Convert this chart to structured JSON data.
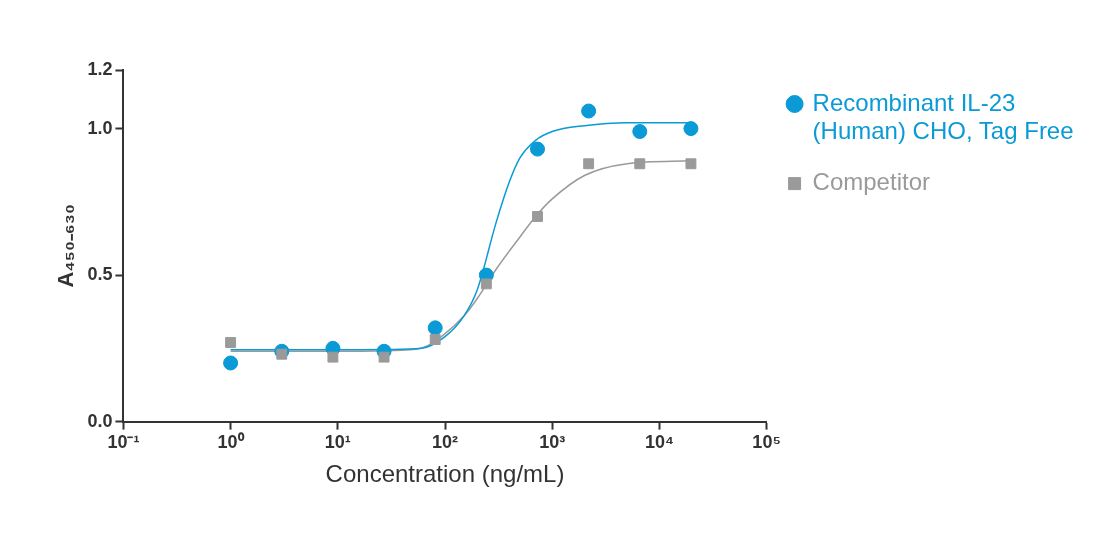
{
  "chart_data": {
    "type": "scatter",
    "xlabel": "Concentration (ng/mL)",
    "ylabel": "A₄₅₀₋₆₃₀",
    "log": "x",
    "xlim": [
      0.1,
      100000
    ],
    "xticks": [
      {
        "value": 0.1,
        "label": "10⁻¹"
      },
      {
        "value": 1,
        "label": "10⁰"
      },
      {
        "value": 10,
        "label": "10¹"
      },
      {
        "value": 100,
        "label": "10²"
      },
      {
        "value": 1000,
        "label": "10³"
      },
      {
        "value": 10000,
        "label": "10⁴"
      },
      {
        "value": 100000,
        "label": "10⁵"
      }
    ],
    "ylim": [
      0,
      1.2
    ],
    "yticks": [
      {
        "value": 0,
        "label": "0.0"
      },
      {
        "value": 0.5,
        "label": "0.5"
      },
      {
        "value": 1.0,
        "label": "1.0"
      },
      {
        "value": 1.2,
        "label": "1.2"
      }
    ],
    "grid": false,
    "legend": "right",
    "series": [
      {
        "name": "Recombinant IL-23 (Human) CHO, Tag Free",
        "type": "scatter",
        "marker": "circle",
        "color": "#0a9ad6",
        "x": [
          1,
          3,
          9,
          27,
          81,
          243,
          729,
          2187,
          6561,
          19683
        ],
        "values": [
          0.2,
          0.24,
          0.25,
          0.24,
          0.32,
          0.5,
          0.93,
          1.06,
          0.99,
          1.0
        ]
      },
      {
        "name": "Competitor",
        "type": "scatter",
        "marker": "square",
        "color": "#9a9a9a",
        "x": [
          1,
          3,
          9,
          27,
          81,
          243,
          729,
          2187,
          6561,
          19683
        ],
        "values": [
          0.27,
          0.23,
          0.22,
          0.22,
          0.28,
          0.47,
          0.7,
          0.88,
          0.88,
          0.88
        ]
      },
      {
        "type": "line",
        "color": "#0a9ad6",
        "x": [
          1,
          10,
          30,
          60,
          100,
          150,
          200,
          300,
          400,
          500,
          700,
          1000,
          2000,
          5000,
          20000
        ],
        "values": [
          0.245,
          0.245,
          0.246,
          0.25,
          0.29,
          0.36,
          0.45,
          0.68,
          0.82,
          0.9,
          0.96,
          0.99,
          1.01,
          1.02,
          1.02
        ]
      },
      {
        "type": "line",
        "color": "#9a9a9a",
        "x": [
          1,
          10,
          30,
          60,
          100,
          150,
          200,
          300,
          500,
          700,
          1000,
          2000,
          5000,
          20000
        ],
        "values": [
          0.24,
          0.24,
          0.242,
          0.25,
          0.3,
          0.36,
          0.42,
          0.52,
          0.63,
          0.7,
          0.76,
          0.84,
          0.88,
          0.89
        ]
      }
    ]
  }
}
